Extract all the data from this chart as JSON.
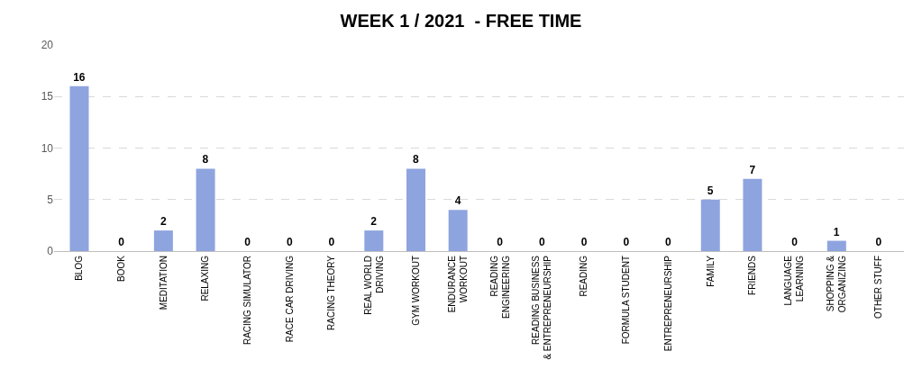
{
  "chart_data": {
    "type": "bar",
    "title": "WEEK 1 / 2021  - FREE TIME",
    "categories": [
      "BLOG",
      "BOOK",
      "MEDITATION",
      "RELAXING",
      "RACING SIMULATOR",
      "RACE CAR DRIVING",
      "RACING THEORY",
      "REAL WORLD DRIVING",
      "GYM WORKOUT",
      "ENDURANCE WORKOUT",
      "READING ENGINEERING",
      "READING BUSINESS & ENTREPRENEURSHIP",
      "READING",
      "FORMULA STUDENT",
      "ENTREPRENEURSHIP",
      "FAMILY",
      "FRIENDS",
      "LANGUAGE LEARNING",
      "SHOPPING & ORGANIZING",
      "OTHER STUFF"
    ],
    "values": [
      16,
      0,
      2,
      8,
      0,
      0,
      0,
      2,
      8,
      4,
      0,
      0,
      0,
      0,
      0,
      5,
      7,
      0,
      1,
      0
    ],
    "color": "#8ea4df",
    "ylim": [
      0,
      20
    ],
    "yticks": [
      0,
      5,
      10,
      15,
      20
    ],
    "grid": "y",
    "data_labels": true
  }
}
